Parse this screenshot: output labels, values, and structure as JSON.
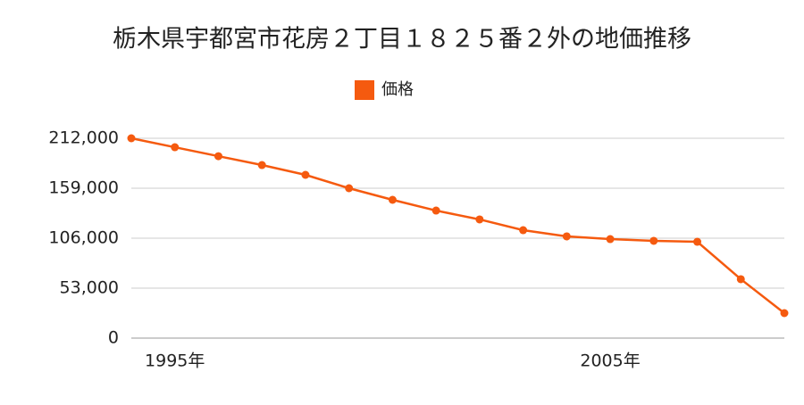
{
  "chart_data": {
    "type": "line",
    "title": "栃木県宇都宮市花房２丁目１８２５番２外の地価推移",
    "categories": [
      null,
      "1995年",
      null,
      null,
      null,
      null,
      null,
      null,
      null,
      null,
      null,
      "2005年",
      null,
      null,
      null,
      null
    ],
    "series": [
      {
        "name": "価格",
        "color": "#f55a0f",
        "values": [
          212000,
          202500,
          193000,
          183600,
          173200,
          159000,
          146700,
          135300,
          125900,
          114500,
          107900,
          105000,
          103200,
          102200,
          62500,
          26500
        ]
      }
    ],
    "ylim": [
      0,
      212000
    ],
    "yticks": [
      0,
      {
        "value": 53000,
        "label": "53,000"
      },
      {
        "value": 106000,
        "label": "106,000"
      },
      {
        "value": 159000,
        "label": "159,000"
      },
      {
        "value": 212000,
        "label": "212,000"
      }
    ],
    "grid": true
  }
}
